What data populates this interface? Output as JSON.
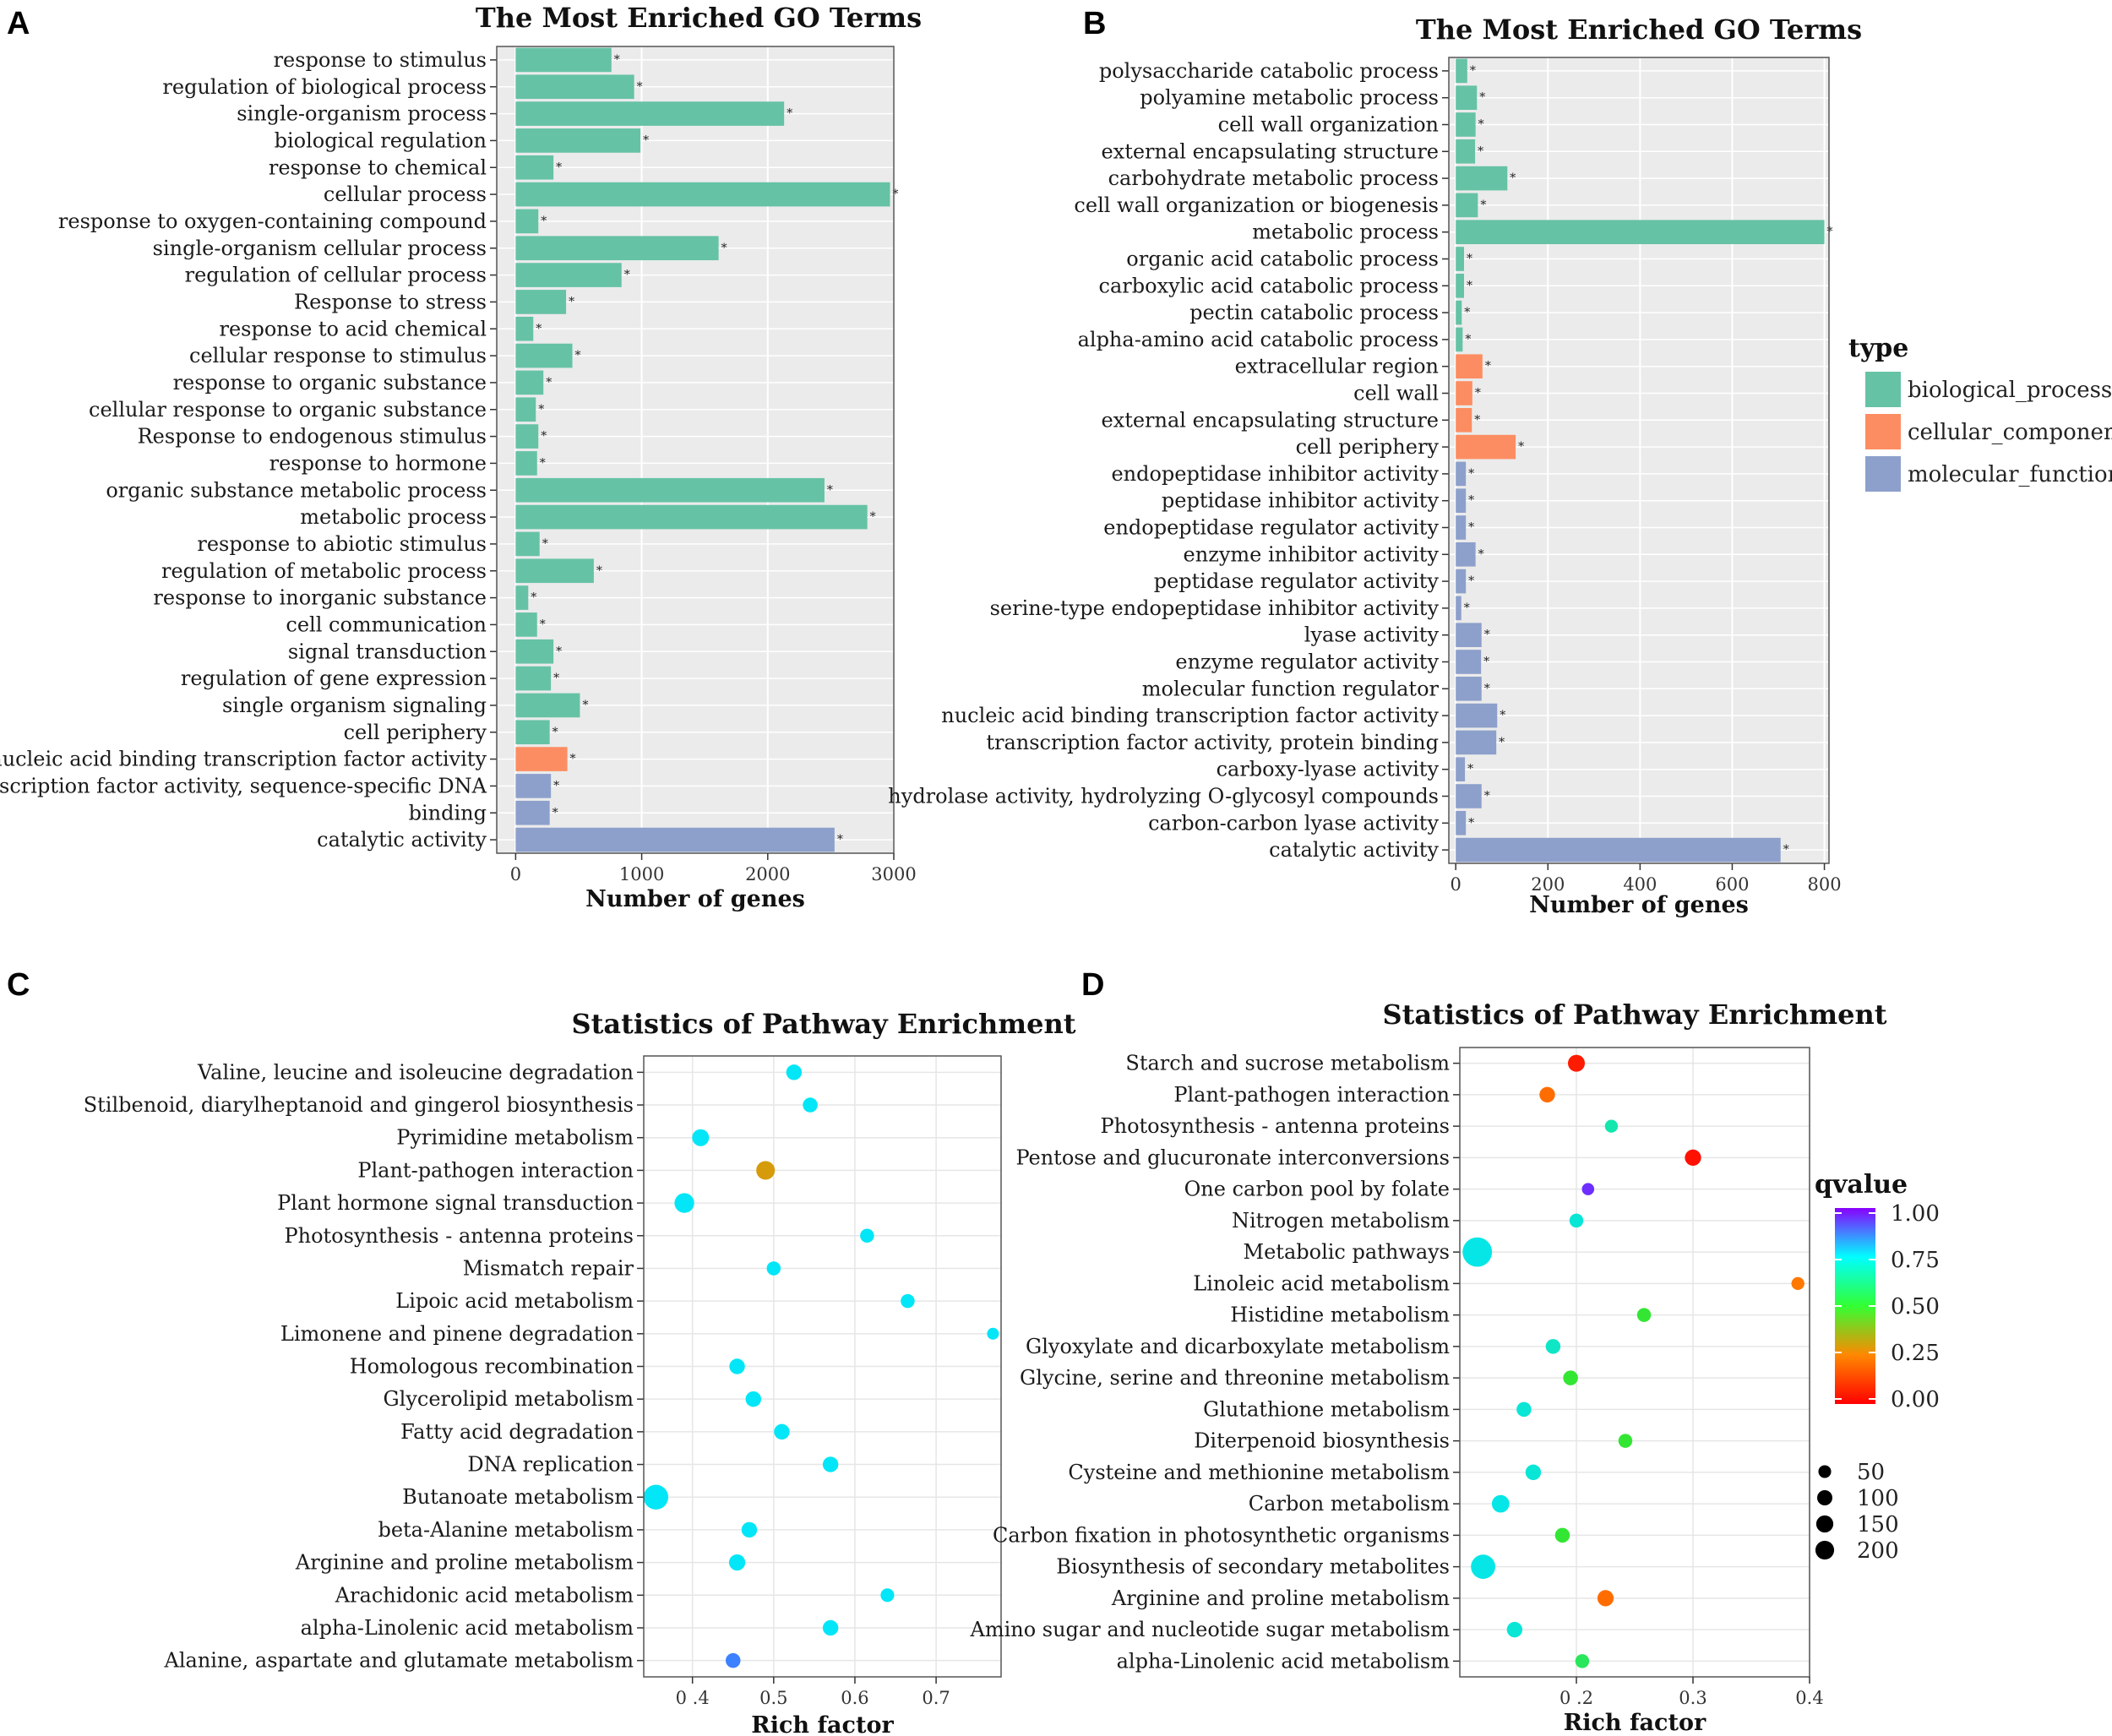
{
  "chart_data": [
    {
      "panel": "A",
      "type": "bar",
      "orientation": "horizontal",
      "title": "The Most Enriched GO Terms",
      "xlabel": "Number of genes",
      "ylabel": "",
      "xlim": [
        -150,
        3000
      ],
      "xticks": [
        0,
        1000,
        2000,
        3000
      ],
      "xtick_labels": [
        "0",
        "1000",
        "2000",
        "3000"
      ],
      "significance_mark": "*",
      "grid": true,
      "categories": [
        "response to stimulus",
        "regulation of biological process",
        "single-organism process",
        "biological regulation",
        "response to chemical",
        "cellular process",
        "response to oxygen-containing compound",
        "single-organism cellular process",
        "regulation of cellular process",
        "Response to stress",
        "response to acid chemical",
        "cellular response to stimulus",
        "response to organic substance",
        "cellular response to organic substance",
        "Response to endogenous stimulus",
        "response to hormone",
        "organic substance metabolic process",
        "metabolic process",
        "response to abiotic stimulus",
        "regulation of metabolic process",
        "response to inorganic substance",
        "cell communication",
        "signal transduction",
        "regulation of gene expression",
        "single organism signaling",
        "cell periphery",
        "nucleic acid binding transcription factor activity",
        "transcription factor activity, sequence-specific DNA",
        "binding",
        "catalytic activity"
      ],
      "values": [
        760,
        940,
        2130,
        990,
        300,
        2970,
        180,
        1610,
        840,
        400,
        140,
        450,
        220,
        160,
        180,
        170,
        2450,
        2790,
        190,
        620,
        100,
        170,
        300,
        280,
        510,
        270,
        410,
        280,
        270,
        2530
      ],
      "types": [
        "biological_process",
        "biological_process",
        "biological_process",
        "biological_process",
        "biological_process",
        "biological_process",
        "biological_process",
        "biological_process",
        "biological_process",
        "biological_process",
        "biological_process",
        "biological_process",
        "biological_process",
        "biological_process",
        "biological_process",
        "biological_process",
        "biological_process",
        "biological_process",
        "biological_process",
        "biological_process",
        "biological_process",
        "biological_process",
        "biological_process",
        "biological_process",
        "biological_process",
        "biological_process",
        "cellular_component",
        "molecular_function",
        "molecular_function",
        "molecular_function"
      ]
    },
    {
      "panel": "B",
      "type": "bar",
      "orientation": "horizontal",
      "title": "The Most Enriched GO Terms",
      "xlabel": "Number of genes",
      "ylabel": "",
      "xlim": [
        -15,
        810
      ],
      "xticks": [
        0,
        200,
        400,
        600,
        800
      ],
      "xtick_labels": [
        "0",
        "200",
        "400",
        "600",
        "800"
      ],
      "significance_mark": "*",
      "grid": true,
      "categories": [
        "polysaccharide catabolic process",
        "polyamine metabolic process",
        "cell wall organization",
        "external encapsulating structure",
        "carbohydrate metabolic process",
        "cell wall organization or biogenesis",
        "metabolic process",
        "organic acid catabolic process",
        "carboxylic acid catabolic process",
        "pectin catabolic process",
        "alpha-amino acid catabolic process",
        "extracellular region",
        "cell wall",
        "external encapsulating structure",
        "cell periphery",
        "endopeptidase inhibitor activity",
        "peptidase inhibitor activity",
        "endopeptidase regulator activity",
        "enzyme inhibitor activity",
        "peptidase regulator activity",
        "serine-type endopeptidase inhibitor activity",
        "lyase activity",
        "enzyme regulator activity",
        "molecular function regulator",
        "nucleic acid binding transcription factor activity",
        "transcription factor activity, protein binding",
        "carboxy-lyase activity",
        "hydrolase activity, hydrolyzing O-glycosyl compounds",
        "carbon-carbon lyase activity",
        "catalytic activity"
      ],
      "values": [
        25,
        46,
        43,
        42,
        112,
        48,
        800,
        18,
        18,
        13,
        15,
        58,
        36,
        35,
        130,
        22,
        22,
        22,
        43,
        22,
        12,
        56,
        55,
        56,
        90,
        88,
        20,
        56,
        22,
        705
      ],
      "types": [
        "biological_process",
        "biological_process",
        "biological_process",
        "biological_process",
        "biological_process",
        "biological_process",
        "biological_process",
        "biological_process",
        "biological_process",
        "biological_process",
        "biological_process",
        "cellular_component",
        "cellular_component",
        "cellular_component",
        "cellular_component",
        "molecular_function",
        "molecular_function",
        "molecular_function",
        "molecular_function",
        "molecular_function",
        "molecular_function",
        "molecular_function",
        "molecular_function",
        "molecular_function",
        "molecular_function",
        "molecular_function",
        "molecular_function",
        "molecular_function",
        "molecular_function",
        "molecular_function"
      ],
      "legend": {
        "title": "type",
        "placement": "right",
        "entries": [
          {
            "label": "biological_process",
            "color": "#66c2a5"
          },
          {
            "label": "cellular_component",
            "color": "#fc8d62"
          },
          {
            "label": "molecular_function",
            "color": "#8da0cb"
          }
        ]
      }
    },
    {
      "panel": "C",
      "type": "scatter",
      "title": "Statistics of Pathway Enrichment",
      "xlabel": "Rich factor",
      "ylabel": "",
      "xlim": [
        0.34,
        0.78
      ],
      "xticks": [
        0.4,
        0.5,
        0.6,
        0.7
      ],
      "xtick_labels": [
        "0 .4",
        "0.5",
        "0.6",
        "0.7"
      ],
      "grid": true,
      "categories": [
        "Valine, leucine and isoleucine degradation",
        "Stilbenoid, diarylheptanoid and gingerol biosynthesis",
        "Pyrimidine metabolism",
        "Plant-pathogen interaction",
        "Plant hormone signal transduction",
        "Photosynthesis - antenna proteins",
        "Mismatch repair",
        "Lipoic acid metabolism",
        "Limonene and pinene degradation",
        "Homologous recombination",
        "Glycerolipid metabolism",
        "Fatty acid degradation",
        "DNA replication",
        "Butanoate metabolism",
        "beta-Alanine metabolism",
        "Arginine and proline metabolism",
        "Arachidonic acid metabolism",
        "alpha-Linolenic acid metabolism",
        "Alanine, aspartate and glutamate metabolism"
      ],
      "rich_factor": [
        0.525,
        0.545,
        0.41,
        0.49,
        0.39,
        0.615,
        0.5,
        0.665,
        0.77,
        0.455,
        0.475,
        0.51,
        0.57,
        0.355,
        0.47,
        0.455,
        0.64,
        0.57,
        0.45
      ],
      "qvalue": [
        0.74,
        0.74,
        0.74,
        0.3,
        0.74,
        0.74,
        0.74,
        0.74,
        0.74,
        0.74,
        0.74,
        0.74,
        0.74,
        0.74,
        0.74,
        0.74,
        0.74,
        0.74,
        0.86
      ],
      "gene_number": [
        30,
        25,
        40,
        55,
        65,
        20,
        20,
        20,
        10,
        30,
        30,
        30,
        30,
        125,
        30,
        35,
        18,
        30,
        25
      ]
    },
    {
      "panel": "D",
      "type": "scatter",
      "title": "Statistics of Pathway Enrichment",
      "xlabel": "Rich factor",
      "ylabel": "",
      "xlim": [
        0.1,
        0.4
      ],
      "xticks": [
        0.2,
        0.3,
        0.4
      ],
      "xtick_labels": [
        "0 .2",
        "0.3",
        "0.4"
      ],
      "grid": true,
      "categories": [
        "Starch and sucrose metabolism",
        "Plant-pathogen interaction",
        "Photosynthesis - antenna proteins",
        "Pentose and glucuronate interconversions",
        "One carbon pool by folate",
        "Nitrogen metabolism",
        "Metabolic pathways",
        "Linoleic acid metabolism",
        "Histidine metabolism",
        "Glyoxylate and dicarboxylate metabolism",
        "Glycine, serine and threonine metabolism",
        "Glutathione metabolism",
        "Diterpenoid biosynthesis",
        "Cysteine and methionine metabolism",
        "Carbon metabolism",
        "Carbon fixation in photosynthetic organisms",
        "Biosynthesis of secondary metabolites",
        "Arginine and proline metabolism",
        "Amino sugar and nucleotide sugar metabolism",
        "alpha-Linolenic acid metabolism"
      ],
      "rich_factor": [
        0.2,
        0.175,
        0.23,
        0.3,
        0.21,
        0.2,
        0.115,
        0.39,
        0.258,
        0.18,
        0.195,
        0.155,
        0.242,
        0.163,
        0.135,
        0.188,
        0.12,
        0.225,
        0.147,
        0.205
      ],
      "qvalue": [
        0.05,
        0.2,
        0.65,
        0.03,
        0.95,
        0.7,
        0.72,
        0.22,
        0.5,
        0.68,
        0.5,
        0.7,
        0.5,
        0.7,
        0.72,
        0.5,
        0.72,
        0.2,
        0.7,
        0.55
      ],
      "gene_number": [
        40,
        30,
        15,
        35,
        12,
        20,
        200,
        15,
        20,
        25,
        25,
        25,
        20,
        30,
        45,
        25,
        120,
        35,
        30,
        20
      ],
      "legend_color": {
        "title": "qvalue",
        "placement": "right",
        "ticks": [
          1.0,
          0.75,
          0.5,
          0.25,
          0.0
        ],
        "tick_labels": [
          "1.00",
          "0.75",
          "0.50",
          "0.25",
          "0.00"
        ],
        "colors": [
          "#ff0000",
          "#ff8800",
          "#33ff33",
          "#00ffff",
          "#8800ff"
        ]
      },
      "legend_size": {
        "placement": "right",
        "values": [
          50,
          100,
          150,
          200
        ],
        "labels": [
          "50",
          "100",
          "150",
          "200"
        ]
      }
    }
  ],
  "panel_labels": [
    "A",
    "B",
    "C",
    "D"
  ]
}
